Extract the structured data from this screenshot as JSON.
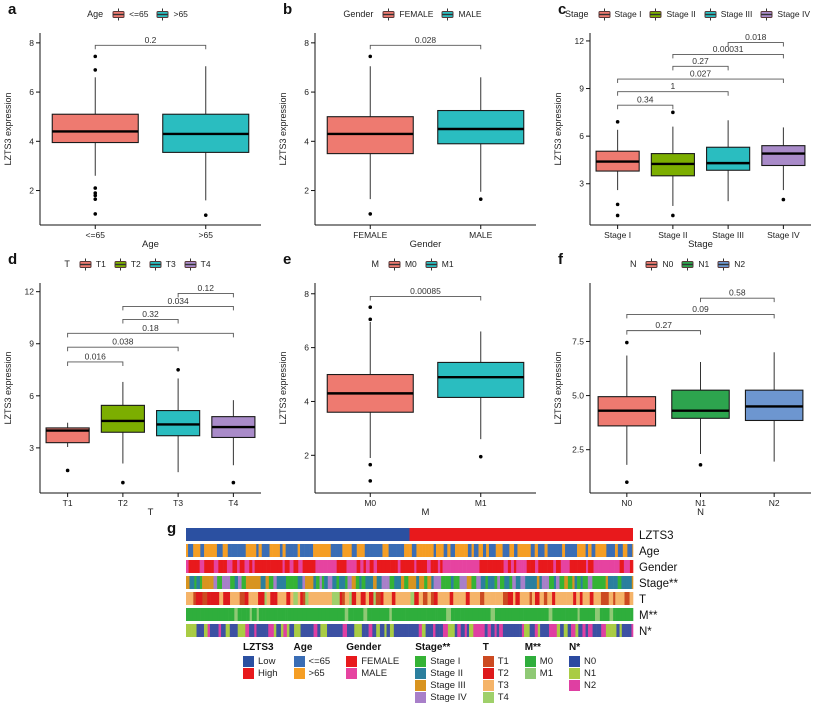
{
  "chart_data": {
    "type": "multi-panel-boxplots-and-heatmap",
    "ylabel_shared": "LZTS3  expression",
    "panels": [
      {
        "letter": "a",
        "type": "boxplot",
        "legend_title": "Age",
        "xlabel": "Age",
        "ylabel": "LZTS3  expression",
        "ylim": [
          0.6,
          8.4
        ],
        "yticks": [
          {
            "v": 2,
            "label": "2"
          },
          {
            "v": 4,
            "label": "4"
          },
          {
            "v": 6,
            "label": "6"
          },
          {
            "v": 8,
            "label": "8"
          }
        ],
        "groups": [
          {
            "label": "<=65",
            "color": "#EE7A70",
            "q1": 3.95,
            "median": 4.4,
            "q3": 5.1,
            "whisker_low": 2.6,
            "whisker_high": 6.6,
            "outliers": [
              7.45,
              6.9,
              2.1,
              1.9,
              1.8,
              1.65,
              1.05
            ]
          },
          {
            "label": ">65",
            "color": "#2ABDC0",
            "q1": 3.55,
            "median": 4.3,
            "q3": 5.1,
            "whisker_low": 1.6,
            "whisker_high": 7.05,
            "outliers": [
              1.0
            ]
          }
        ],
        "comparisons": [
          {
            "group1": 0,
            "group2": 1,
            "p": "0.2",
            "y": 7.9
          }
        ]
      },
      {
        "letter": "b",
        "type": "boxplot",
        "legend_title": "Gender",
        "xlabel": "Gender",
        "ylabel": "LZTS3  expression",
        "ylim": [
          0.6,
          8.4
        ],
        "yticks": [
          {
            "v": 2,
            "label": "2"
          },
          {
            "v": 4,
            "label": "4"
          },
          {
            "v": 6,
            "label": "6"
          },
          {
            "v": 8,
            "label": "8"
          }
        ],
        "groups": [
          {
            "label": "FEMALE",
            "color": "#EE7A70",
            "q1": 3.5,
            "median": 4.3,
            "q3": 5.0,
            "whisker_low": 1.65,
            "whisker_high": 7.05,
            "outliers": [
              7.45,
              1.05
            ]
          },
          {
            "label": "MALE",
            "color": "#2ABDC0",
            "q1": 3.9,
            "median": 4.5,
            "q3": 5.25,
            "whisker_low": 1.95,
            "whisker_high": 6.6,
            "outliers": [
              1.65
            ]
          }
        ],
        "comparisons": [
          {
            "group1": 0,
            "group2": 1,
            "p": "0.028",
            "y": 7.9
          }
        ]
      },
      {
        "letter": "c",
        "type": "boxplot",
        "legend_title": "Stage",
        "xlabel": "Stage",
        "ylabel": "LZTS3  expression",
        "ylim": [
          0.4,
          12.5
        ],
        "yticks": [
          {
            "v": 3,
            "label": "3"
          },
          {
            "v": 6,
            "label": "6"
          },
          {
            "v": 9,
            "label": "9"
          },
          {
            "v": 12,
            "label": "12"
          }
        ],
        "groups": [
          {
            "label": "Stage I",
            "color": "#EE7A70",
            "q1": 3.8,
            "median": 4.4,
            "q3": 5.05,
            "whisker_low": 2.6,
            "whisker_high": 6.4,
            "outliers": [
              6.9,
              1.7,
              1.0
            ]
          },
          {
            "label": "Stage II",
            "color": "#7CAE00",
            "q1": 3.5,
            "median": 4.25,
            "q3": 4.9,
            "whisker_low": 1.6,
            "whisker_high": 6.6,
            "outliers": [
              7.5,
              1.0
            ]
          },
          {
            "label": "Stage III",
            "color": "#2ABDC0",
            "q1": 3.85,
            "median": 4.3,
            "q3": 5.3,
            "whisker_low": 1.9,
            "whisker_high": 7.0,
            "outliers": []
          },
          {
            "label": "Stage IV",
            "color": "#A98BC9",
            "q1": 4.15,
            "median": 4.9,
            "q3": 5.4,
            "whisker_low": 2.6,
            "whisker_high": 6.55,
            "outliers": [
              2.0
            ]
          }
        ],
        "comparisons": [
          {
            "group1": 0,
            "group2": 1,
            "p": "0.34",
            "y": 7.95
          },
          {
            "group1": 0,
            "group2": 2,
            "p": "1",
            "y": 8.8
          },
          {
            "group1": 0,
            "group2": 3,
            "p": "0.027",
            "y": 9.6
          },
          {
            "group1": 1,
            "group2": 2,
            "p": "0.27",
            "y": 10.4
          },
          {
            "group1": 1,
            "group2": 3,
            "p": "0.00031",
            "y": 11.15
          },
          {
            "group1": 2,
            "group2": 3,
            "p": "0.018",
            "y": 11.9
          }
        ]
      },
      {
        "letter": "d",
        "type": "boxplot",
        "legend_title": "T",
        "xlabel": "T",
        "ylabel": "LZTS3 expression",
        "ylim": [
          0.4,
          12.5
        ],
        "yticks": [
          {
            "v": 3,
            "label": "3"
          },
          {
            "v": 6,
            "label": "6"
          },
          {
            "v": 9,
            "label": "9"
          },
          {
            "v": 12,
            "label": "12"
          }
        ],
        "groups": [
          {
            "label": "T1",
            "color": "#EE7A70",
            "q1": 3.3,
            "median": 4.0,
            "q3": 4.15,
            "whisker_low": 3.05,
            "whisker_high": 4.45,
            "outliers": [
              1.7
            ]
          },
          {
            "label": "T2",
            "color": "#7CAE00",
            "q1": 3.9,
            "median": 4.55,
            "q3": 5.45,
            "whisker_low": 2.1,
            "whisker_high": 6.8,
            "outliers": [
              1.0
            ]
          },
          {
            "label": "T3",
            "color": "#2ABDC0",
            "q1": 3.7,
            "median": 4.35,
            "q3": 5.15,
            "whisker_low": 1.6,
            "whisker_high": 7.0,
            "outliers": [
              7.5
            ]
          },
          {
            "label": "T4",
            "color": "#A98BC9",
            "q1": 3.6,
            "median": 4.2,
            "q3": 4.8,
            "whisker_low": 2.0,
            "whisker_high": 5.75,
            "outliers": [
              1.0
            ]
          }
        ],
        "comparisons": [
          {
            "group1": 0,
            "group2": 1,
            "p": "0.016",
            "y": 7.95
          },
          {
            "group1": 0,
            "group2": 2,
            "p": "0.038",
            "y": 8.8
          },
          {
            "group1": 0,
            "group2": 3,
            "p": "0.18",
            "y": 9.6
          },
          {
            "group1": 1,
            "group2": 2,
            "p": "0.32",
            "y": 10.4
          },
          {
            "group1": 1,
            "group2": 3,
            "p": "0.034",
            "y": 11.15
          },
          {
            "group1": 2,
            "group2": 3,
            "p": "0.12",
            "y": 11.9
          }
        ]
      },
      {
        "letter": "e",
        "type": "boxplot",
        "legend_title": "M",
        "xlabel": "M",
        "ylabel": "LZTS3 expression",
        "ylim": [
          0.6,
          8.4
        ],
        "yticks": [
          {
            "v": 2,
            "label": "2"
          },
          {
            "v": 4,
            "label": "4"
          },
          {
            "v": 6,
            "label": "6"
          },
          {
            "v": 8,
            "label": "8"
          }
        ],
        "groups": [
          {
            "label": "M0",
            "color": "#EE7A70",
            "q1": 3.6,
            "median": 4.3,
            "q3": 5.0,
            "whisker_low": 1.9,
            "whisker_high": 6.95,
            "outliers": [
              7.5,
              7.05,
              1.65,
              1.05
            ]
          },
          {
            "label": "M1",
            "color": "#2ABDC0",
            "q1": 4.15,
            "median": 4.9,
            "q3": 5.45,
            "whisker_low": 2.6,
            "whisker_high": 6.6,
            "outliers": [
              1.95
            ]
          }
        ],
        "comparisons": [
          {
            "group1": 0,
            "group2": 1,
            "p": "0.00085",
            "y": 7.9
          }
        ]
      },
      {
        "letter": "f",
        "type": "boxplot",
        "legend_title": "N",
        "xlabel": "N",
        "ylabel": "LZTS3 expression",
        "ylim": [
          0.5,
          10.2
        ],
        "yticks": [
          {
            "v": 2.5,
            "label": "2.5"
          },
          {
            "v": 5,
            "label": "5.0"
          },
          {
            "v": 7.5,
            "label": "7.5"
          }
        ],
        "groups": [
          {
            "label": "N0",
            "color": "#EE7A70",
            "q1": 3.6,
            "median": 4.3,
            "q3": 4.95,
            "whisker_low": 1.8,
            "whisker_high": 6.85,
            "outliers": [
              7.45,
              1.0
            ]
          },
          {
            "label": "N1",
            "color": "#2DA44E",
            "q1": 3.95,
            "median": 4.3,
            "q3": 5.25,
            "whisker_low": 2.3,
            "whisker_high": 6.55,
            "outliers": [
              1.8
            ]
          },
          {
            "label": "N2",
            "color": "#6D96D0",
            "q1": 3.85,
            "median": 4.5,
            "q3": 5.25,
            "whisker_low": 1.95,
            "whisker_high": 7.0,
            "outliers": []
          }
        ],
        "comparisons": [
          {
            "group1": 0,
            "group2": 1,
            "p": "0.27",
            "y": 8.0
          },
          {
            "group1": 0,
            "group2": 2,
            "p": "0.09",
            "y": 8.75
          },
          {
            "group1": 1,
            "group2": 2,
            "p": "0.58",
            "y": 9.5
          }
        ]
      }
    ],
    "heatmap": {
      "letter": "g",
      "rows": [
        {
          "label": "LZTS3",
          "split": 0.5,
          "colors": [
            "#2B50A1",
            "#E8191C"
          ]
        },
        {
          "label": "Age",
          "colors": [
            "#F59E24",
            "#3A6DB5"
          ],
          "weights": [
            0.6,
            0.4
          ]
        },
        {
          "label": "Gender",
          "colors": [
            "#E8191C",
            "#E643A0"
          ],
          "weights": [
            0.6,
            0.4
          ]
        },
        {
          "label": "Stage**",
          "colors": [
            "#2B7F9E",
            "#35B335",
            "#D89420",
            "#A87FC9"
          ],
          "weights": [
            0.34,
            0.3,
            0.22,
            0.14
          ]
        },
        {
          "label": "T",
          "colors": [
            "#F5B469",
            "#DE1A1C",
            "#CC4A21",
            "#9FD06A"
          ],
          "weights": [
            0.6,
            0.22,
            0.12,
            0.06
          ]
        },
        {
          "label": "M**",
          "colors": [
            "#2FAE3C",
            "#8FC975"
          ],
          "weights": [
            0.9,
            0.1
          ]
        },
        {
          "label": "N*",
          "colors": [
            "#3C51A3",
            "#DF3FA2",
            "#A9CC44"
          ],
          "weights": [
            0.52,
            0.2,
            0.28
          ]
        }
      ],
      "legend": [
        {
          "title": "LZTS3",
          "items": [
            {
              "label": "Low",
              "color": "#2B50A1"
            },
            {
              "label": "High",
              "color": "#E8191C"
            }
          ]
        },
        {
          "title": "Age",
          "items": [
            {
              "label": "<=65",
              "color": "#3A6DB5"
            },
            {
              "label": ">65",
              "color": "#F59E24"
            }
          ]
        },
        {
          "title": "Gender",
          "items": [
            {
              "label": "FEMALE",
              "color": "#E8191C"
            },
            {
              "label": "MALE",
              "color": "#E643A0"
            }
          ]
        },
        {
          "title": "Stage**",
          "items": [
            {
              "label": "Stage I",
              "color": "#35B335"
            },
            {
              "label": "Stage II",
              "color": "#2B7F9E"
            },
            {
              "label": "Stage III",
              "color": "#D89420"
            },
            {
              "label": "Stage IV",
              "color": "#A87FC9"
            }
          ]
        },
        {
          "title": "T",
          "items": [
            {
              "label": "T1",
              "color": "#CC4A21"
            },
            {
              "label": "T2",
              "color": "#DE1A1C"
            },
            {
              "label": "T3",
              "color": "#F5B469"
            },
            {
              "label": "T4",
              "color": "#9FD06A"
            }
          ]
        },
        {
          "title": "M**",
          "items": [
            {
              "label": "M0",
              "color": "#2FAE3C"
            },
            {
              "label": "M1",
              "color": "#8FC975"
            }
          ]
        },
        {
          "title": "N*",
          "items": [
            {
              "label": "N0",
              "color": "#2B4AA0"
            },
            {
              "label": "N1",
              "color": "#A9CC44"
            },
            {
              "label": "N2",
              "color": "#DF3FA2"
            }
          ]
        }
      ]
    }
  }
}
